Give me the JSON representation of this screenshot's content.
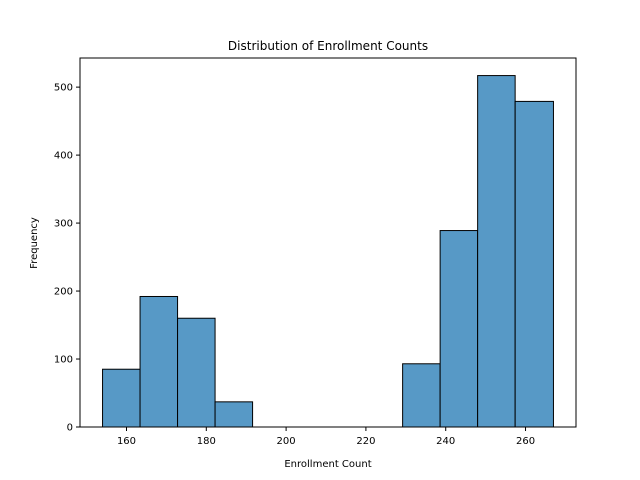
{
  "chart_data": {
    "type": "bar",
    "chart_kind": "histogram",
    "title": "Distribution of Enrollment Counts",
    "xlabel": "Enrollment Count",
    "ylabel": "Frequency",
    "xlim": [
      148.35,
      272.65
    ],
    "ylim": [
      0,
      542.85
    ],
    "xticks": [
      160,
      180,
      200,
      220,
      240,
      260
    ],
    "yticks": [
      0,
      100,
      200,
      300,
      400,
      500
    ],
    "grid": false,
    "bins": [
      {
        "x0": 154.0,
        "x1": 163.4,
        "count": 85
      },
      {
        "x0": 163.4,
        "x1": 172.8,
        "count": 192
      },
      {
        "x0": 172.8,
        "x1": 182.2,
        "count": 160
      },
      {
        "x0": 182.2,
        "x1": 191.6,
        "count": 37
      },
      {
        "x0": 191.6,
        "x1": 201.0,
        "count": 0
      },
      {
        "x0": 201.0,
        "x1": 210.4,
        "count": 0
      },
      {
        "x0": 210.4,
        "x1": 219.8,
        "count": 0
      },
      {
        "x0": 219.8,
        "x1": 229.2,
        "count": 0
      },
      {
        "x0": 229.2,
        "x1": 238.6,
        "count": 93
      },
      {
        "x0": 238.6,
        "x1": 248.0,
        "count": 289
      },
      {
        "x0": 248.0,
        "x1": 257.4,
        "count": 517
      },
      {
        "x0": 257.4,
        "x1": 267.0,
        "count": 479
      }
    ],
    "bar_color": "#5799c6",
    "edge_color": "#000000"
  }
}
